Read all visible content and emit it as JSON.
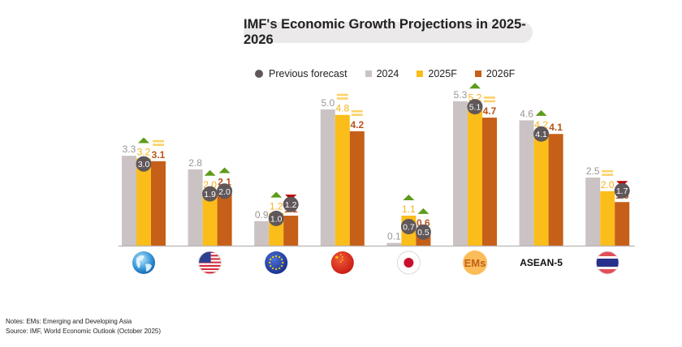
{
  "title": "IMF's Economic Growth Projections in 2025-2026",
  "legend": {
    "previous": "Previous forecast",
    "s2024": "2024",
    "s2025": "2025F",
    "s2026": "2026F"
  },
  "colors": {
    "2024": "#cbc3c3",
    "2025F": "#fbbd1a",
    "2026F": "#c65f18",
    "previous": "#5f5759",
    "up": "#5e9b1a",
    "down": "#c00000",
    "unchanged": "#fcd26a",
    "label_2024": "#9b9595",
    "label_2025F": "#f5b21a",
    "label_2026F": "#b7531a"
  },
  "notes": {
    "line1": "Notes: EMs: Emerging and Developing Asia",
    "line2": "Source: IMF, World Economic Outlook (October 2025)"
  },
  "chart_data": {
    "type": "bar",
    "title": "IMF's Economic Growth Projections in 2025-2026",
    "xlabel": "",
    "ylabel": "",
    "ylim": [
      0,
      6
    ],
    "grid": false,
    "legend_position": "top-center",
    "categories": [
      "World",
      "United States",
      "Euro Area",
      "China",
      "Japan",
      "EMs",
      "ASEAN-5",
      "Thailand"
    ],
    "category_icons": [
      "globe-icon",
      "us-flag-icon",
      "eu-flag-icon",
      "china-flag-icon",
      "japan-flag-icon",
      "ems-badge",
      "asean-5-label",
      "thailand-flag-icon"
    ],
    "category_text": [
      "",
      "",
      "",
      "",
      "",
      "EMs",
      "ASEAN-5",
      ""
    ],
    "series": [
      {
        "name": "2024",
        "values": [
          3.3,
          2.8,
          0.9,
          5.0,
          0.1,
          5.3,
          4.6,
          2.5
        ]
      },
      {
        "name": "2025F",
        "values": [
          3.2,
          2.0,
          1.2,
          4.8,
          1.1,
          5.2,
          4.2,
          2.0
        ]
      },
      {
        "name": "2026F",
        "values": [
          3.1,
          2.1,
          1.1,
          4.2,
          0.6,
          4.7,
          4.1,
          1.6
        ]
      }
    ],
    "previous_forecast": {
      "2025F": [
        3.0,
        1.9,
        1.0,
        null,
        0.7,
        5.1,
        4.1,
        null
      ],
      "2026F": [
        null,
        2.0,
        1.2,
        null,
        0.5,
        null,
        null,
        1.7
      ]
    },
    "revision_markers": {
      "2025F": [
        "up",
        "up",
        "up",
        "unchanged",
        "up",
        "up",
        "up",
        "unchanged"
      ],
      "2026F": [
        "unchanged",
        "up",
        "down",
        "unchanged",
        "up",
        "unchanged",
        null,
        "down"
      ]
    }
  }
}
